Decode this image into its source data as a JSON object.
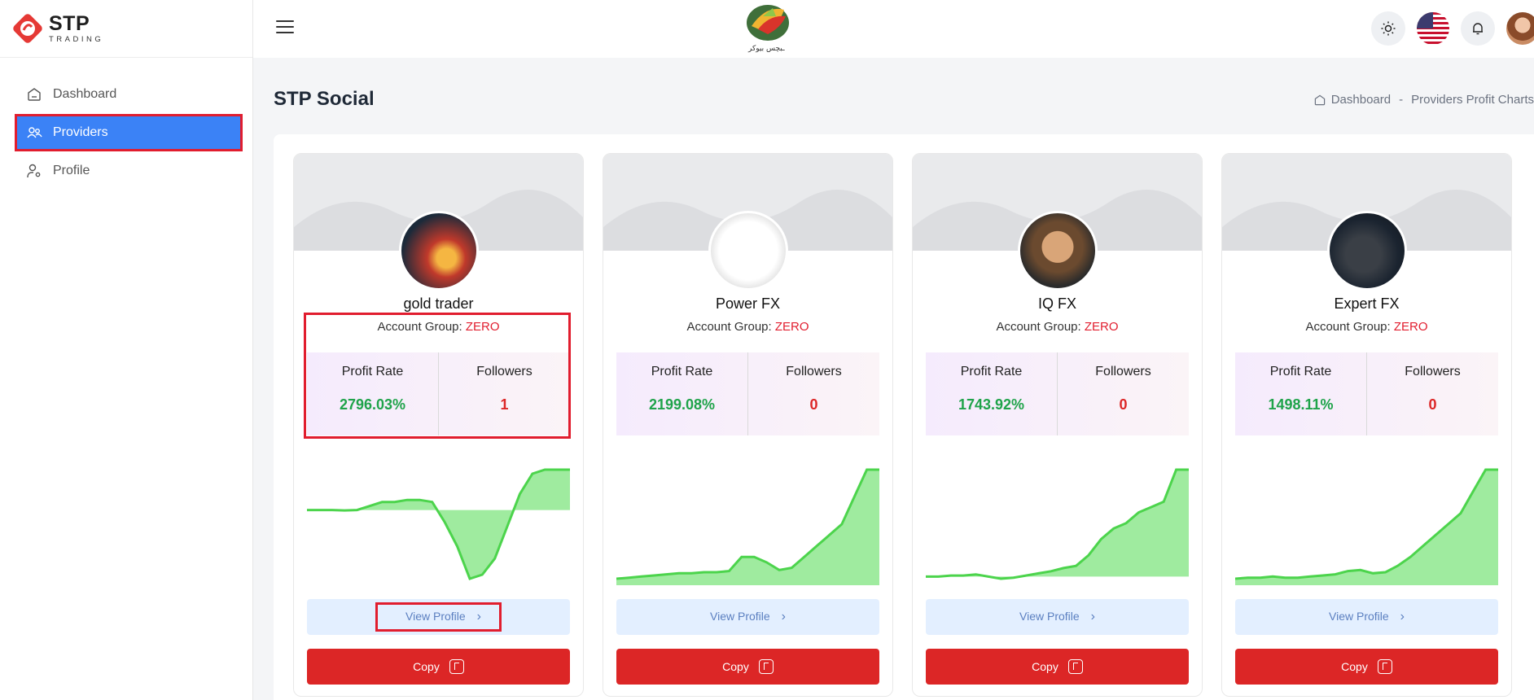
{
  "brand": {
    "name": "STP",
    "sub": "TRADING"
  },
  "sidebar": {
    "items": [
      {
        "label": "Dashboard",
        "icon": "home-icon",
        "active": false
      },
      {
        "label": "Providers",
        "icon": "users-icon",
        "active": true
      },
      {
        "label": "Profile",
        "icon": "user-gear-icon",
        "active": false
      }
    ]
  },
  "topbar": {
    "logo_caption": "ـبچس بیوکر",
    "icons": [
      "sun-icon",
      "us-flag-icon",
      "bell-icon",
      "avatar"
    ]
  },
  "page": {
    "title": "STP Social"
  },
  "breadcrumb": {
    "home": "Dashboard",
    "sep": "-",
    "current": "Providers Profit Charts"
  },
  "labels": {
    "account_group": "Account Group:",
    "profit_rate": "Profit Rate",
    "followers": "Followers",
    "view_profile": "View Profile",
    "copy": "Copy"
  },
  "colors": {
    "accent_red": "#dc2626",
    "active_blue": "#3b82f6",
    "profit_green": "#1fa34a"
  },
  "providers": [
    {
      "name": "gold trader",
      "group": "ZERO",
      "profit_rate": "2796.03%",
      "followers": "1",
      "sparkline": [
        0.0,
        0.0,
        0.0,
        -0.01,
        0.0,
        0.1,
        0.2,
        0.2,
        0.25,
        0.25,
        0.2,
        -0.3,
        -0.9,
        -1.7,
        -1.6,
        -1.2,
        -0.4,
        0.4,
        0.9,
        1.0,
        1.0,
        1.0
      ]
    },
    {
      "name": "Power FX",
      "group": "ZERO",
      "profit_rate": "2199.08%",
      "followers": "0",
      "sparkline": [
        0,
        0.01,
        0.02,
        0.03,
        0.04,
        0.05,
        0.05,
        0.06,
        0.06,
        0.07,
        0.2,
        0.2,
        0.15,
        0.08,
        0.1,
        0.2,
        0.3,
        0.4,
        0.5,
        0.75,
        1.0,
        1.0
      ]
    },
    {
      "name": "IQ FX",
      "group": "ZERO",
      "profit_rate": "1743.92%",
      "followers": "0",
      "sparkline": [
        0,
        0.0,
        0.01,
        0.01,
        0.02,
        0.0,
        -0.02,
        -0.01,
        0.01,
        0.03,
        0.05,
        0.08,
        0.1,
        0.2,
        0.35,
        0.45,
        0.5,
        0.6,
        0.65,
        0.7,
        1.0,
        1.0
      ]
    },
    {
      "name": "Expert FX",
      "group": "ZERO",
      "profit_rate": "1498.11%",
      "followers": "0",
      "sparkline": [
        0,
        0.01,
        0.01,
        0.02,
        0.01,
        0.01,
        0.02,
        0.03,
        0.04,
        0.07,
        0.08,
        0.05,
        0.06,
        0.12,
        0.2,
        0.3,
        0.4,
        0.5,
        0.6,
        0.8,
        1.0,
        1.0
      ]
    }
  ]
}
